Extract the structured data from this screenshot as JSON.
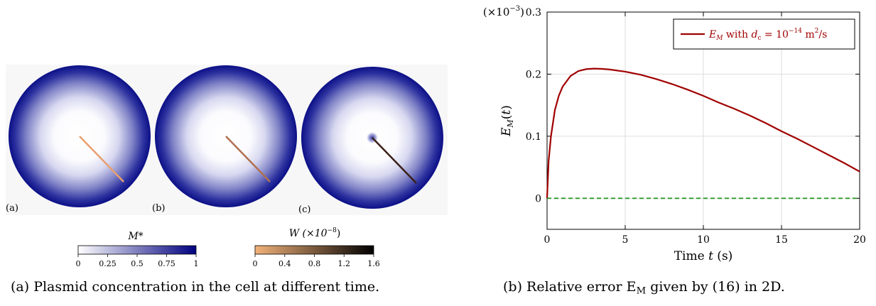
{
  "left": {
    "panels": [
      {
        "label": "(a)",
        "arrow_color": "#e8a070",
        "center_blob": false
      },
      {
        "label": "(b)",
        "arrow_color": "#b07050",
        "center_blob": false
      },
      {
        "label": "(c)",
        "arrow_color": "#3a2018",
        "center_blob": true
      }
    ],
    "colorbar_m": {
      "title": "M*",
      "ticks": [
        "0",
        "0.25",
        "0.5",
        "0.75",
        "1"
      ],
      "colors": [
        "#ffffff",
        "#00007f"
      ]
    },
    "colorbar_w": {
      "title": "W (×10",
      "title_exp": "−8",
      "title_close": ")",
      "ticks": [
        "0",
        "0.4",
        "0.8",
        "1.2",
        "1.6"
      ],
      "colors": [
        "#f2b27a",
        "#000000"
      ]
    },
    "caption": "(a) Plasmid concentration in the cell at different time."
  },
  "right": {
    "caption_prefix": "(b) Relative error E",
    "caption_sub": "M",
    "caption_suffix": " given by (16) in 2D."
  },
  "chart_data": {
    "type": "line",
    "xlabel": "Time t (s)",
    "ylabel": "E_M(t)",
    "y_multiplier": "(×10^−3)",
    "xlim": [
      0,
      20
    ],
    "ylim": [
      -0.05,
      0.3
    ],
    "xticks": [
      0,
      5,
      10,
      15,
      20
    ],
    "yticks": [
      0,
      0.1,
      0.2,
      0.3
    ],
    "grid": true,
    "legend_position": "top-right",
    "series": [
      {
        "name": "E_M with d_c = 10^−14 m²/s",
        "color": "#a00000",
        "x": [
          0,
          0.1,
          0.25,
          0.5,
          0.75,
          1,
          1.5,
          2,
          2.5,
          3,
          3.5,
          4,
          5,
          6,
          7,
          8,
          9,
          10,
          11,
          12,
          13,
          14,
          15,
          16,
          17,
          18,
          19,
          20
        ],
        "y": [
          0,
          0.06,
          0.1,
          0.142,
          0.165,
          0.18,
          0.197,
          0.205,
          0.208,
          0.209,
          0.2085,
          0.2075,
          0.204,
          0.199,
          0.192,
          0.184,
          0.175,
          0.165,
          0.154,
          0.144,
          0.133,
          0.121,
          0.108,
          0.096,
          0.083,
          0.07,
          0.057,
          0.043
        ]
      },
      {
        "name": "zero",
        "color": "#2a9a2a",
        "x": [
          0,
          20
        ],
        "y": [
          0,
          0
        ]
      }
    ]
  }
}
